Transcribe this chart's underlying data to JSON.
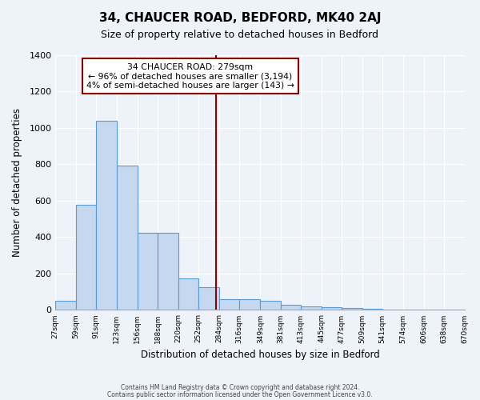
{
  "title": "34, CHAUCER ROAD, BEDFORD, MK40 2AJ",
  "subtitle": "Size of property relative to detached houses in Bedford",
  "xlabel": "Distribution of detached houses by size in Bedford",
  "ylabel": "Number of detached properties",
  "footer_lines": [
    "Contains HM Land Registry data © Crown copyright and database right 2024.",
    "Contains public sector information licensed under the Open Government Licence v3.0."
  ],
  "bin_edges": [
    27,
    59,
    91,
    123,
    156,
    188,
    220,
    252,
    284,
    316,
    349,
    381,
    413,
    445,
    477,
    509,
    541,
    574,
    606,
    638,
    670
  ],
  "bin_labels": [
    "27sqm",
    "59sqm",
    "91sqm",
    "123sqm",
    "156sqm",
    "188sqm",
    "220sqm",
    "252sqm",
    "284sqm",
    "316sqm",
    "349sqm",
    "381sqm",
    "413sqm",
    "445sqm",
    "477sqm",
    "509sqm",
    "541sqm",
    "574sqm",
    "606sqm",
    "638sqm",
    "670sqm"
  ],
  "bar_values": [
    50,
    578,
    1040,
    795,
    425,
    425,
    175,
    125,
    60,
    60,
    50,
    30,
    20,
    15,
    10,
    5,
    3,
    2,
    1,
    0
  ],
  "bar_color": "#c5d8f0",
  "bar_edge_color": "#5b9bd5",
  "vline_x": 279,
  "vline_color": "#8b0000",
  "annotation_title": "34 CHAUCER ROAD: 279sqm",
  "annotation_line1": "← 96% of detached houses are smaller (3,194)",
  "annotation_line2": "4% of semi-detached houses are larger (143) →",
  "annotation_box_color": "#8b0000",
  "ylim": [
    0,
    1400
  ],
  "yticks": [
    0,
    200,
    400,
    600,
    800,
    1000,
    1200,
    1400
  ],
  "bg_color": "#eef2f9",
  "plot_bg_color": "#eef2f9",
  "grid_color": "#ffffff"
}
